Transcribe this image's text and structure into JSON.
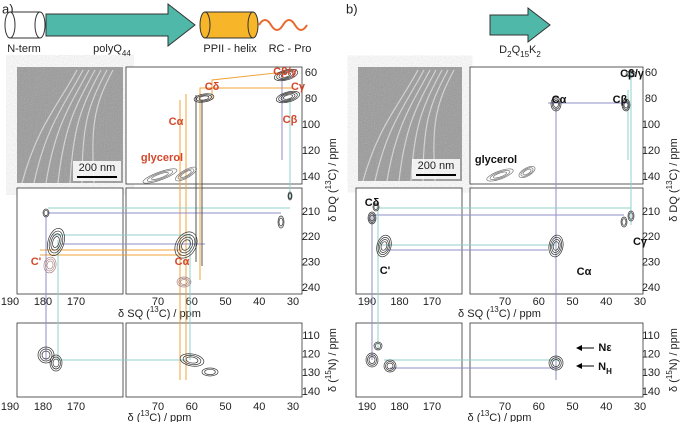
{
  "panel_a": {
    "label": "a)",
    "schematic": {
      "n_term": "N-term",
      "repeat": [
        {
          "text": "polyQ"
        },
        {
          "text": "44",
          "shift": "sub"
        }
      ],
      "helix": "PPII - helix",
      "coil": "RC - Pro"
    },
    "scale_bar": "200 nm",
    "peak_labels": [
      "Cβ/γ",
      "Cγ",
      "Cδ",
      "Cα",
      "Cβ",
      "glycerol",
      "C'",
      "Cα"
    ],
    "x_ticks_left": [
      190,
      180,
      170
    ],
    "x_ticks_right": [
      70,
      60,
      50,
      40,
      30
    ],
    "dq_ticks_top": [
      60,
      80,
      100,
      120,
      140
    ],
    "dq_ticks_mid": [
      210,
      220,
      230,
      240
    ],
    "n_ticks": [
      110,
      120,
      130,
      140
    ],
    "sq_axis": [
      {
        "text": "δ SQ ("
      },
      {
        "text": "13",
        "shift": "sup"
      },
      {
        "text": "C) / ppm"
      }
    ],
    "dq_axis": [
      {
        "text": "δ DQ ("
      },
      {
        "text": "13",
        "shift": "sup"
      },
      {
        "text": "C) / ppm"
      }
    ],
    "n_axis": [
      {
        "text": "δ ("
      },
      {
        "text": "15",
        "shift": "sup"
      },
      {
        "text": "N) / ppm"
      }
    ],
    "c_axis": [
      {
        "text": "δ ("
      },
      {
        "text": "13",
        "shift": "sup"
      },
      {
        "text": "C) / ppm"
      }
    ]
  },
  "panel_b": {
    "label": "b)",
    "schematic": {
      "repeat": [
        {
          "text": "D"
        },
        {
          "text": "2",
          "shift": "sub"
        },
        {
          "text": "Q"
        },
        {
          "text": "15",
          "shift": "sub"
        },
        {
          "text": "K"
        },
        {
          "text": "2",
          "shift": "sub"
        }
      ]
    },
    "scale_bar": "200 nm",
    "peak_labels": [
      "Cβ/γ",
      "Cα",
      "Cβ",
      "glycerol",
      "Cδ",
      "Cγ",
      "C'",
      "Cα",
      "Nε",
      [
        {
          "text": "N"
        },
        {
          "text": "H",
          "shift": "sub"
        }
      ]
    ],
    "x_ticks_left": [
      190,
      180,
      170
    ],
    "x_ticks_right": [
      70,
      60,
      50,
      40,
      30
    ],
    "dq_ticks_top": [
      60,
      80,
      100,
      120,
      140
    ],
    "dq_ticks_mid": [
      210,
      220,
      230,
      240
    ],
    "n_ticks": [
      110,
      120,
      130,
      140
    ],
    "sq_axis": [
      {
        "text": "δ SQ ("
      },
      {
        "text": "13",
        "shift": "sup"
      },
      {
        "text": "C) / ppm"
      }
    ],
    "dq_axis": [
      {
        "text": "δ DQ ("
      },
      {
        "text": "13",
        "shift": "sup"
      },
      {
        "text": "C) / ppm"
      }
    ],
    "n_axis": [
      {
        "text": "δ ("
      },
      {
        "text": "15",
        "shift": "sup"
      },
      {
        "text": "N) / ppm"
      }
    ],
    "c_axis": [
      {
        "text": "δ ("
      },
      {
        "text": "13",
        "shift": "sup"
      },
      {
        "text": "C) / ppm"
      }
    ]
  }
}
